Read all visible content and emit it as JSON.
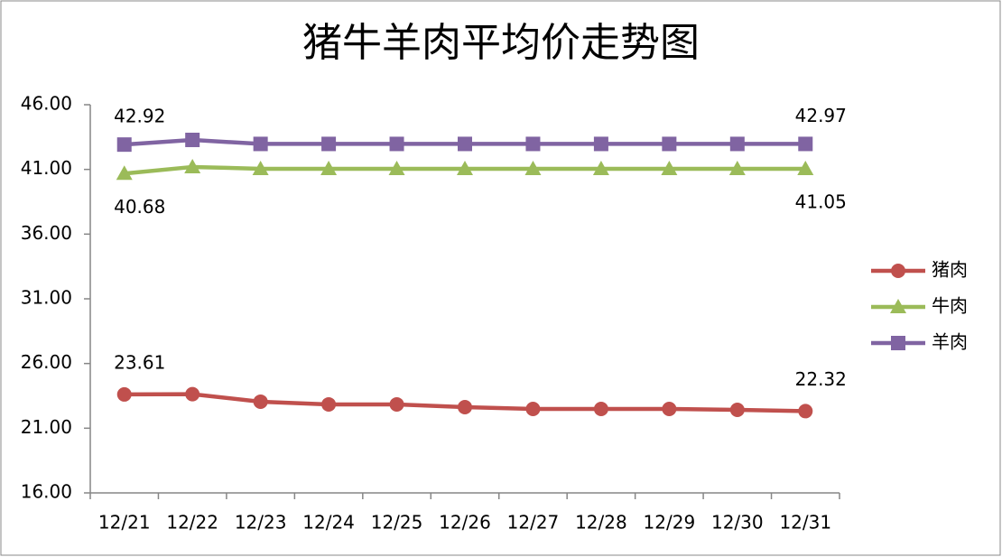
{
  "chart_data": {
    "type": "line",
    "title": "猪牛羊肉平均价走势图",
    "categories": [
      "12/21",
      "12/22",
      "12/23",
      "12/24",
      "12/25",
      "12/26",
      "12/27",
      "12/28",
      "12/29",
      "12/30",
      "12/31"
    ],
    "series": [
      {
        "name": "猪肉",
        "color": "#c0504d",
        "marker": "circle",
        "values": [
          23.61,
          23.63,
          23.05,
          22.84,
          22.84,
          22.63,
          22.49,
          22.49,
          22.49,
          22.42,
          22.32
        ]
      },
      {
        "name": "牛肉",
        "color": "#9bbb59",
        "marker": "triangle",
        "values": [
          40.68,
          41.19,
          41.05,
          41.05,
          41.05,
          41.05,
          41.05,
          41.05,
          41.05,
          41.05,
          41.05
        ]
      },
      {
        "name": "羊肉",
        "color": "#8064a2",
        "marker": "square",
        "values": [
          42.92,
          43.28,
          42.97,
          42.97,
          42.97,
          42.97,
          42.97,
          42.97,
          42.97,
          42.97,
          42.97
        ]
      }
    ],
    "ylim": [
      16,
      46
    ],
    "yticks": [
      {
        "value": 16,
        "label": "16.00"
      },
      {
        "value": 21,
        "label": "21.00"
      },
      {
        "value": 26,
        "label": "26.00"
      },
      {
        "value": 31,
        "label": "31.00"
      },
      {
        "value": 36,
        "label": "36.00"
      },
      {
        "value": 41,
        "label": "41.00"
      },
      {
        "value": 46,
        "label": "46.00"
      }
    ],
    "legend": "right"
  }
}
